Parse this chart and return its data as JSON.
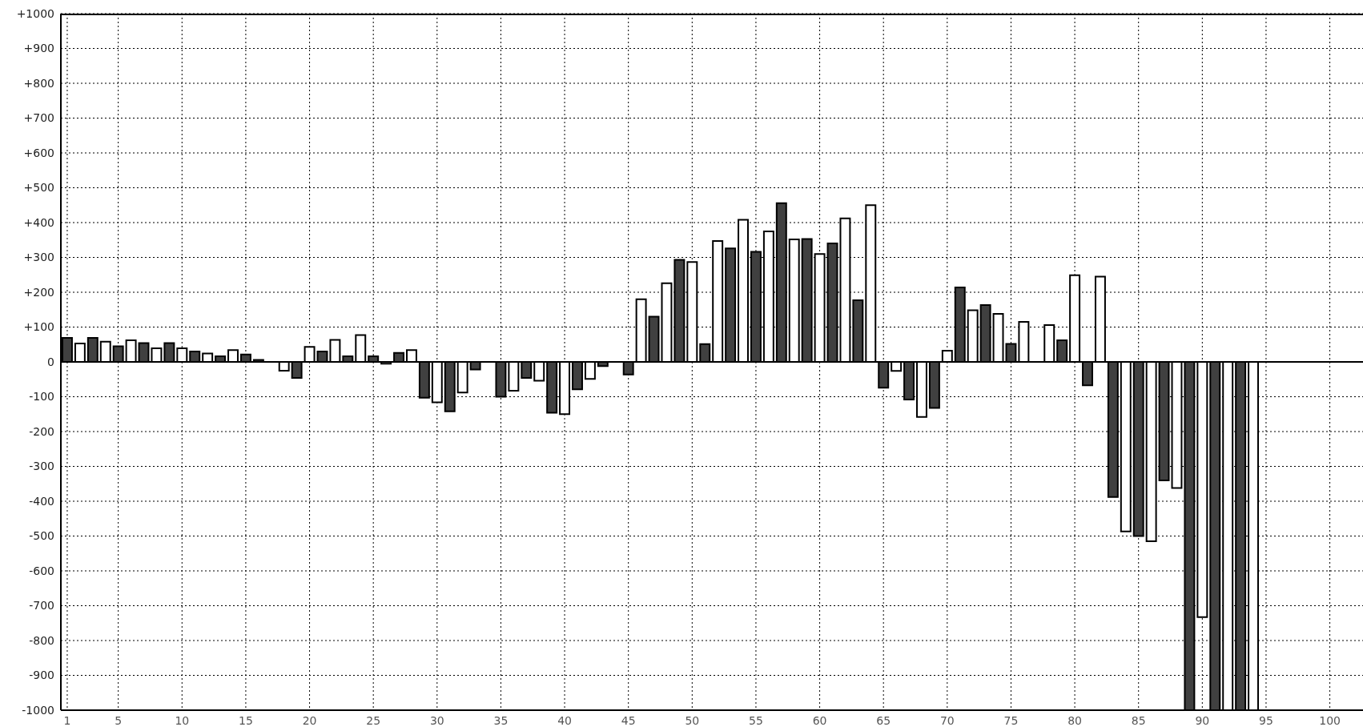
{
  "chart_data": {
    "type": "bar",
    "x": [
      1,
      2,
      3,
      4,
      5,
      6,
      7,
      8,
      9,
      10,
      11,
      12,
      13,
      14,
      15,
      16,
      17,
      18,
      19,
      20,
      21,
      22,
      23,
      24,
      25,
      26,
      27,
      28,
      29,
      30,
      31,
      32,
      33,
      34,
      35,
      36,
      37,
      38,
      39,
      40,
      41,
      42,
      43,
      44,
      45,
      46,
      47,
      48,
      49,
      50,
      51,
      52,
      53,
      54,
      55,
      56,
      57,
      58,
      59,
      60,
      61,
      62,
      63,
      64,
      65,
      66,
      67,
      68,
      69,
      70,
      71,
      72,
      73,
      74,
      75,
      76,
      77,
      78,
      79,
      80,
      81,
      82,
      83,
      84,
      85,
      86,
      87,
      88,
      89,
      90,
      91,
      92,
      93,
      94
    ],
    "values": [
      69,
      53,
      69,
      58,
      45,
      62,
      54,
      39,
      54,
      39,
      30,
      24,
      16,
      34,
      21,
      6,
      0,
      -25,
      -46,
      43,
      30,
      63,
      16,
      77,
      16,
      -5,
      26,
      34,
      -103,
      -116,
      -142,
      -88,
      -22,
      0,
      -100,
      -83,
      -46,
      -54,
      -146,
      -150,
      -79,
      -49,
      -12,
      0,
      -36,
      180,
      130,
      226,
      293,
      287,
      51,
      347,
      326,
      408,
      316,
      375,
      456,
      352,
      353,
      310,
      340,
      412,
      177,
      450,
      -74,
      -26,
      -108,
      -158,
      -132,
      32,
      214,
      148,
      163,
      138,
      52,
      115,
      0,
      106,
      62,
      249,
      -67,
      245,
      -388,
      -487,
      -500,
      -515,
      -340,
      -362,
      -1000,
      -733,
      -1000,
      -1000,
      -1000,
      -1000
    ],
    "colors": [
      "#404040",
      "#ffffff",
      "#404040",
      "#ffffff",
      "#404040",
      "#ffffff",
      "#404040",
      "#ffffff",
      "#404040",
      "#ffffff",
      "#404040",
      "#ffffff",
      "#404040",
      "#ffffff",
      "#404040",
      "#404040",
      "#404040",
      "#ffffff",
      "#404040",
      "#ffffff",
      "#404040",
      "#ffffff",
      "#404040",
      "#ffffff",
      "#404040",
      "#ffffff",
      "#404040",
      "#ffffff",
      "#404040",
      "#ffffff",
      "#404040",
      "#ffffff",
      "#404040",
      "#ffffff",
      "#404040",
      "#ffffff",
      "#404040",
      "#ffffff",
      "#404040",
      "#ffffff",
      "#404040",
      "#ffffff",
      "#404040",
      "#ffffff",
      "#404040",
      "#ffffff",
      "#404040",
      "#ffffff",
      "#404040",
      "#ffffff",
      "#404040",
      "#ffffff",
      "#404040",
      "#ffffff",
      "#404040",
      "#ffffff",
      "#404040",
      "#ffffff",
      "#404040",
      "#ffffff",
      "#404040",
      "#ffffff",
      "#404040",
      "#ffffff",
      "#404040",
      "#ffffff",
      "#404040",
      "#ffffff",
      "#404040",
      "#ffffff",
      "#404040",
      "#ffffff",
      "#404040",
      "#ffffff",
      "#404040",
      "#ffffff",
      "#404040",
      "#ffffff",
      "#404040",
      "#ffffff",
      "#404040",
      "#ffffff",
      "#404040",
      "#ffffff",
      "#404040",
      "#ffffff",
      "#404040",
      "#ffffff",
      "#404040",
      "#ffffff",
      "#404040",
      "#ffffff",
      "#404040",
      "#ffffff"
    ],
    "xlim": [
      0.5,
      102.6
    ],
    "xticks": [
      1,
      5,
      10,
      15,
      20,
      25,
      30,
      35,
      40,
      45,
      50,
      55,
      60,
      65,
      70,
      75,
      80,
      85,
      90,
      95,
      100
    ],
    "ylim": [
      -1000,
      1000
    ],
    "yticks": [
      {
        "value": 1000,
        "label": "+1000"
      },
      {
        "value": 900,
        "label": "+900"
      },
      {
        "value": 800,
        "label": "+800"
      },
      {
        "value": 700,
        "label": "+700"
      },
      {
        "value": 600,
        "label": "+600"
      },
      {
        "value": 500,
        "label": "+500"
      },
      {
        "value": 400,
        "label": "+400"
      },
      {
        "value": 300,
        "label": "+300"
      },
      {
        "value": 200,
        "label": "+200"
      },
      {
        "value": 100,
        "label": "+100"
      },
      0,
      -100,
      -200,
      -300,
      -400,
      -500,
      -600,
      -700,
      -800,
      -900,
      -1000
    ],
    "ref_lines": [
      {
        "axis": "y",
        "value": 0,
        "color": "#000000"
      }
    ],
    "grid": true
  }
}
